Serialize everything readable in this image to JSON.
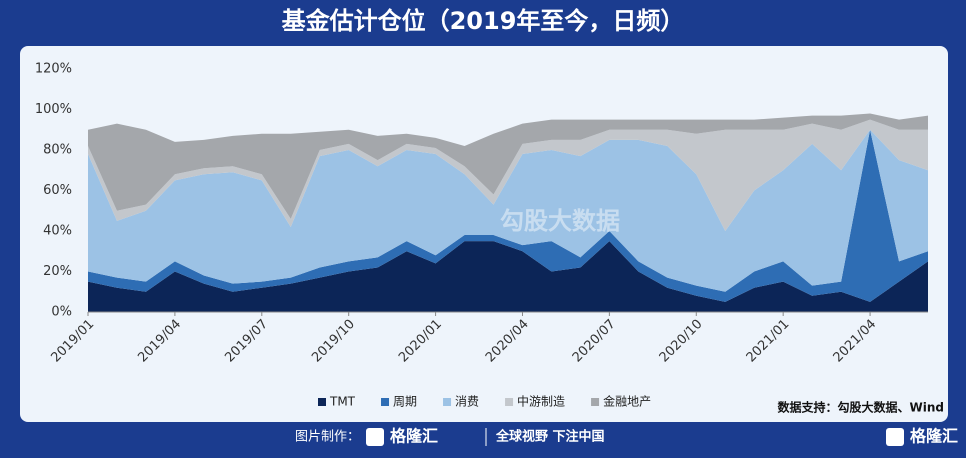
{
  "header": {
    "title": "基金估计仓位（2019年至今，日频）"
  },
  "chart_data": {
    "type": "stacked-area",
    "categories": [
      "2019/01",
      null,
      null,
      "2019/04",
      null,
      null,
      "2019/07",
      null,
      null,
      "2019/10",
      null,
      null,
      "2020/01",
      null,
      null,
      "2020/04",
      null,
      null,
      "2020/07",
      null,
      null,
      "2020/10",
      null,
      null,
      "2021/01",
      null,
      null,
      "2021/04",
      null,
      null
    ],
    "series": [
      {
        "name": "TMT",
        "color": "#0c2557",
        "values": [
          15,
          12,
          10,
          20,
          14,
          10,
          12,
          14,
          17,
          20,
          22,
          30,
          24,
          35,
          35,
          30,
          20,
          22,
          35,
          20,
          12,
          8,
          5,
          12,
          15,
          8,
          10,
          5,
          15,
          25
        ]
      },
      {
        "name": "周期",
        "color": "#2e6db4",
        "values": [
          5,
          5,
          5,
          5,
          4,
          4,
          3,
          3,
          5,
          5,
          5,
          5,
          4,
          3,
          3,
          3,
          15,
          5,
          5,
          5,
          5,
          5,
          5,
          8,
          10,
          5,
          5,
          85,
          10,
          5
        ]
      },
      {
        "name": "消费",
        "color": "#9cc2e5",
        "values": [
          58,
          28,
          35,
          40,
          50,
          55,
          50,
          25,
          55,
          55,
          45,
          45,
          50,
          30,
          15,
          45,
          45,
          50,
          45,
          60,
          65,
          55,
          30,
          40,
          45,
          70,
          55,
          0,
          50,
          40
        ]
      },
      {
        "name": "中游制造",
        "color": "#c3c7cc",
        "values": [
          4,
          5,
          3,
          3,
          3,
          3,
          3,
          4,
          3,
          3,
          3,
          3,
          3,
          4,
          5,
          5,
          5,
          8,
          5,
          5,
          8,
          20,
          50,
          30,
          20,
          10,
          20,
          5,
          15,
          20
        ]
      },
      {
        "name": "金融地产",
        "color": "#a4a7ab",
        "values": [
          8,
          43,
          37,
          16,
          14,
          15,
          20,
          42,
          9,
          7,
          12,
          5,
          5,
          10,
          30,
          10,
          10,
          10,
          5,
          5,
          5,
          7,
          5,
          5,
          6,
          4,
          7,
          3,
          5,
          7
        ]
      }
    ],
    "ylim": [
      0,
      120
    ],
    "yticks": [
      {
        "value": 0,
        "label": "0%"
      },
      {
        "value": 20,
        "label": "20%"
      },
      {
        "value": 40,
        "label": "40%"
      },
      {
        "value": 60,
        "label": "60%"
      },
      {
        "value": 80,
        "label": "80%"
      },
      {
        "value": 100,
        "label": "100%"
      },
      {
        "value": 120,
        "label": "120%"
      }
    ],
    "legend": "bottom",
    "source": "数据支持：勾股大数据、Wind",
    "watermarks": [
      "格隆汇",
      "勾股大数据"
    ]
  },
  "footer": {
    "made_by": "图片制作：",
    "brand": "格隆汇",
    "slogan": "全球视野 下注中国",
    "brand_right": "格隆汇"
  }
}
